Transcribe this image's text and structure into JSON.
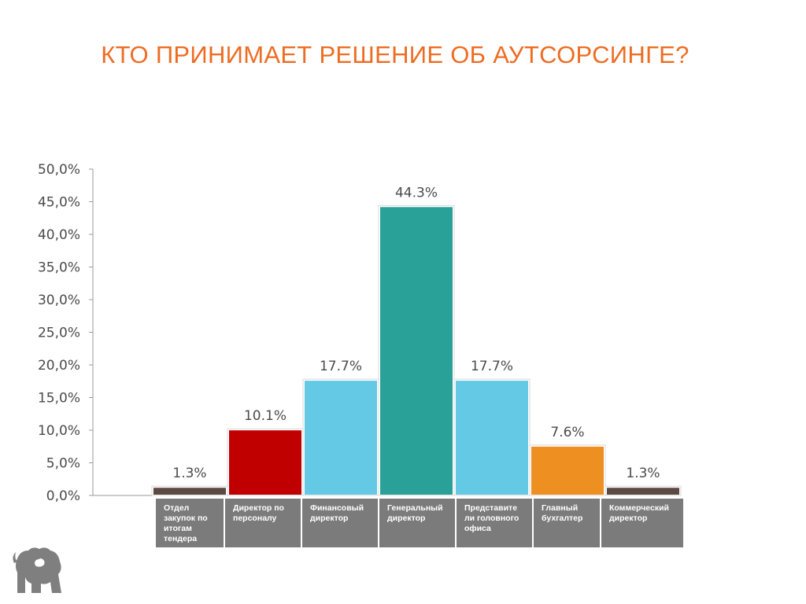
{
  "slide": {
    "title": "КТО ПРИНИМАЕТ РЕШЕНИЕ ОБ АУТСОРСИНГЕ?"
  },
  "chart_data": {
    "type": "bar",
    "title": "",
    "xlabel": "",
    "ylabel": "",
    "ylim": [
      0,
      50
    ],
    "yticks": [
      "0,0%",
      "5,0%",
      "10,0%",
      "15,0%",
      "20,0%",
      "25,0%",
      "30,0%",
      "35,0%",
      "40,0%",
      "45,0%",
      "50,0%"
    ],
    "grid": false,
    "categories": [
      "Отдел закупок по итогам тендера",
      "Директор по персоналу",
      "Финансовый директор",
      "Генеральный директор",
      "Представите ли головного офиса",
      "Главный бухгалтер",
      "Коммерческий директор"
    ],
    "values": [
      1.3,
      10.1,
      17.7,
      44.3,
      17.7,
      7.6,
      1.3
    ],
    "value_labels": [
      "1.3%",
      "10.1%",
      "17.7%",
      "44.3%",
      "17.7%",
      "7.6%",
      "1.3%"
    ],
    "colors": [
      "#5b4a42",
      "#c00000",
      "#63c9e5",
      "#2aa198",
      "#63c9e5",
      "#ee8f22",
      "#5b4a42"
    ]
  },
  "logo": {
    "icon": "lion-logo-icon"
  }
}
